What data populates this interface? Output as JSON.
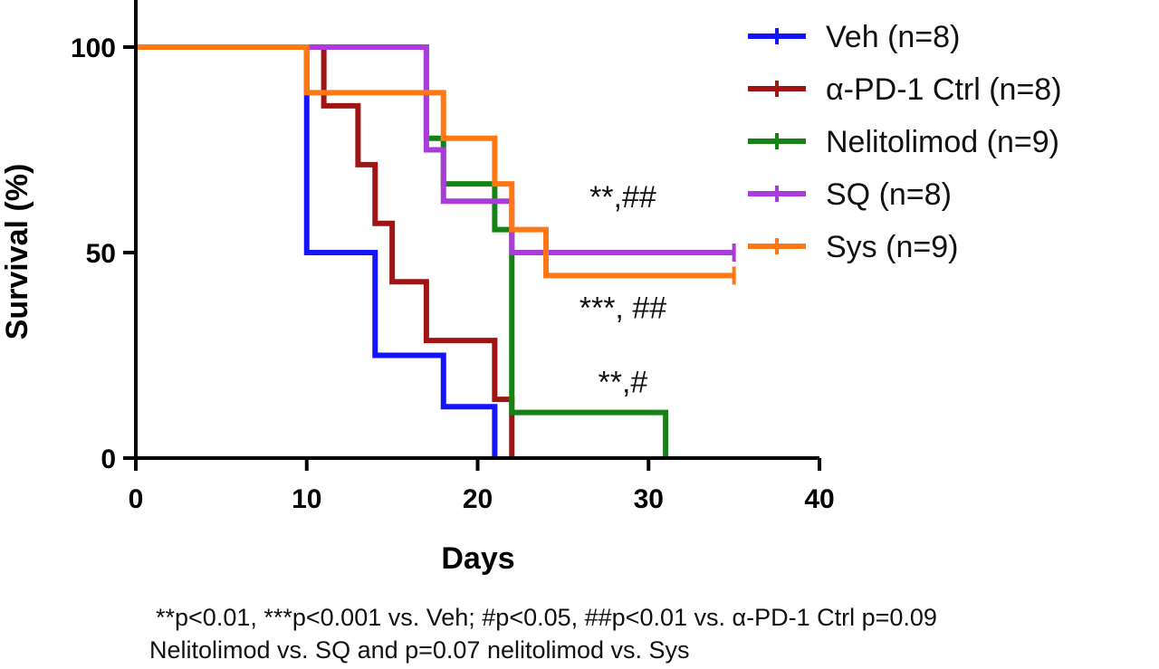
{
  "chart_data": {
    "type": "line",
    "step": true,
    "xlabel": "Days",
    "ylabel": "Survival (%)",
    "xlim": [
      0,
      40
    ],
    "ylim": [
      0,
      100
    ],
    "xticks": [
      0,
      10,
      20,
      30,
      40
    ],
    "yticks": [
      0,
      50,
      100
    ],
    "grid": false,
    "legend_position": "top-right",
    "series": [
      {
        "name": "Veh (n=8)",
        "color": "#1414ff",
        "x": [
          0,
          10,
          14,
          18,
          21
        ],
        "y": [
          100,
          50,
          25,
          12.5,
          0
        ]
      },
      {
        "name": "α-PD-1 Ctrl (n=8)",
        "color": "#a01414",
        "x": [
          0,
          11,
          13,
          14,
          15,
          17,
          21,
          22
        ],
        "y": [
          100,
          85.7,
          71.4,
          57.1,
          42.9,
          28.6,
          14.3,
          0
        ]
      },
      {
        "name": "Nelitolimod (n=9)",
        "color": "#148214",
        "x": [
          0,
          17,
          18,
          21,
          22,
          31
        ],
        "y": [
          100,
          77.8,
          66.7,
          55.6,
          11.1,
          0
        ]
      },
      {
        "name": "SQ (n=8)",
        "color": "#aa3cdc",
        "x": [
          0,
          17,
          18,
          22,
          35
        ],
        "y": [
          100,
          75,
          62.5,
          50,
          50
        ]
      },
      {
        "name": "Sys (n=9)",
        "color": "#ff7814",
        "x": [
          0,
          10,
          18,
          21,
          22,
          24,
          35
        ],
        "y": [
          100,
          88.9,
          77.8,
          66.7,
          55.6,
          44.4,
          44.4
        ]
      }
    ],
    "annotations": [
      {
        "text": "**,##",
        "x": 28.5,
        "y": 61
      },
      {
        "text": "***, ##",
        "x": 28.5,
        "y": 34
      },
      {
        "text": "**,#",
        "x": 28.5,
        "y": 16
      }
    ]
  },
  "footnote": {
    "line1": "**p<0.01, ***p<0.001 vs. Veh; #p<0.05, ##p<0.01 vs. α-PD-1 Ctrl p=0.09",
    "line2": "Nelitolimod vs. SQ and p=0.07 nelitolimod vs. Sys"
  }
}
